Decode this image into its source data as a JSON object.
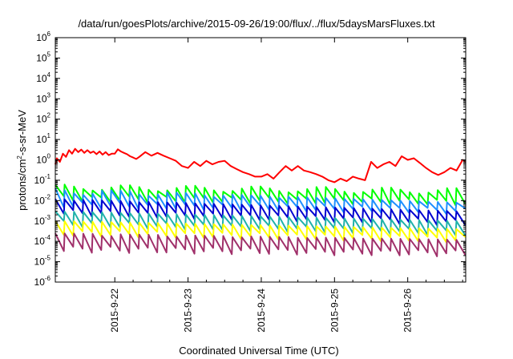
{
  "chart_data": {
    "type": "line",
    "title": "/data/run/goesPlots/archive/2015-09-26/19:00/flux/../flux/5daysMarsFluxes.txt",
    "xlabel": "Coordinated Universal Time (UTC)",
    "ylabel": {
      "prefix": "protons/cm",
      "sup": "2",
      "suffix": "-s-sr-MeV"
    },
    "yscale": "log",
    "ylim_exponents": [
      -6,
      6
    ],
    "y_ticks": [
      {
        "base": "10",
        "exp": "6"
      },
      {
        "base": "10",
        "exp": "5"
      },
      {
        "base": "10",
        "exp": "4"
      },
      {
        "base": "10",
        "exp": "3"
      },
      {
        "base": "10",
        "exp": "2"
      },
      {
        "base": "10",
        "exp": "1"
      },
      {
        "base": "10",
        "exp": "0"
      },
      {
        "base": "10",
        "exp": "-1"
      },
      {
        "base": "10",
        "exp": "-2"
      },
      {
        "base": "10",
        "exp": "-3"
      },
      {
        "base": "10",
        "exp": "-4"
      },
      {
        "base": "10",
        "exp": "-5"
      },
      {
        "base": "10",
        "exp": "-6"
      }
    ],
    "xlim": [
      "2015-09-21 04:30",
      "2015-09-26 19:00"
    ],
    "x_ticks": [
      "2015-9-22",
      "2015-9-23",
      "2015-9-24",
      "2015-9-25",
      "2015-9-26"
    ],
    "grid": false,
    "legend": "none",
    "series": [
      {
        "color": "#ff0000",
        "style": "smooth",
        "x": [
          "2015-09-21 04:30",
          "2015-09-21 05:00",
          "2015-09-21 06:00",
          "2015-09-21 07:00",
          "2015-09-21 08:00",
          "2015-09-21 09:00",
          "2015-09-21 10:00",
          "2015-09-21 11:00",
          "2015-09-21 12:00",
          "2015-09-21 13:00",
          "2015-09-21 14:00",
          "2015-09-21 15:00",
          "2015-09-21 16:00",
          "2015-09-21 17:00",
          "2015-09-21 18:00",
          "2015-09-21 19:00",
          "2015-09-21 20:00",
          "2015-09-21 21:00",
          "2015-09-21 22:00",
          "2015-09-21 23:00",
          "2015-09-22 00:00",
          "2015-09-22 01:00",
          "2015-09-22 02:00",
          "2015-09-22 03:00",
          "2015-09-22 04:00",
          "2015-09-22 05:00",
          "2015-09-22 06:00",
          "2015-09-22 07:00",
          "2015-09-22 08:00",
          "2015-09-22 10:00",
          "2015-09-22 12:00",
          "2015-09-22 14:00",
          "2015-09-22 16:00",
          "2015-09-22 18:00",
          "2015-09-22 20:00",
          "2015-09-22 22:00",
          "2015-09-23 00:00",
          "2015-09-23 02:00",
          "2015-09-23 04:00",
          "2015-09-23 06:00",
          "2015-09-23 08:00",
          "2015-09-23 10:00",
          "2015-09-23 12:00",
          "2015-09-23 14:00",
          "2015-09-23 16:00",
          "2015-09-23 18:00",
          "2015-09-23 20:00",
          "2015-09-23 22:00",
          "2015-09-24 00:00",
          "2015-09-24 02:00",
          "2015-09-24 04:00",
          "2015-09-24 06:00",
          "2015-09-24 08:00",
          "2015-09-24 10:00",
          "2015-09-24 12:00",
          "2015-09-24 14:00",
          "2015-09-24 16:00",
          "2015-09-24 18:00",
          "2015-09-24 20:00",
          "2015-09-24 22:00",
          "2015-09-25 00:00",
          "2015-09-25 02:00",
          "2015-09-25 04:00",
          "2015-09-25 06:00",
          "2015-09-25 08:00",
          "2015-09-25 10:00",
          "2015-09-25 12:00",
          "2015-09-25 14:00",
          "2015-09-25 16:00",
          "2015-09-25 18:00",
          "2015-09-25 20:00",
          "2015-09-25 22:00",
          "2015-09-26 00:00",
          "2015-09-26 02:00",
          "2015-09-26 04:00",
          "2015-09-26 06:00",
          "2015-09-26 08:00",
          "2015-09-26 10:00",
          "2015-09-26 12:00",
          "2015-09-26 14:00",
          "2015-09-26 16:00",
          "2015-09-26 18:00",
          "2015-09-26 19:00"
        ],
        "y": [
          0.6,
          1.2,
          0.8,
          2.0,
          1.4,
          3.0,
          2.0,
          3.5,
          2.4,
          3.2,
          2.2,
          3.0,
          2.2,
          2.6,
          1.9,
          2.6,
          1.8,
          2.4,
          1.7,
          2.0,
          2.0,
          3.3,
          2.6,
          2.2,
          1.9,
          1.5,
          1.3,
          1.1,
          1.4,
          2.4,
          1.6,
          2.2,
          1.6,
          1.2,
          0.9,
          0.5,
          0.4,
          0.8,
          0.5,
          0.9,
          0.6,
          0.8,
          0.9,
          0.5,
          0.35,
          0.25,
          0.2,
          0.15,
          0.15,
          0.2,
          0.12,
          0.25,
          0.5,
          0.3,
          0.5,
          0.3,
          0.25,
          0.2,
          0.15,
          0.1,
          0.08,
          0.12,
          0.09,
          0.15,
          0.12,
          0.1,
          0.8,
          0.4,
          0.6,
          0.8,
          0.5,
          1.5,
          1.0,
          1.2,
          0.7,
          0.4,
          0.25,
          0.18,
          0.25,
          0.4,
          0.3,
          1.0,
          0.8
        ]
      },
      {
        "color": "#00ff00",
        "style": "sawtooth",
        "start": [
          0.15,
          0.012
        ],
        "end": [
          0.09,
          0.008
        ],
        "cycles": 44,
        "amplitude_decades": 0.45
      },
      {
        "color": "#1e90ff",
        "style": "sawtooth",
        "start": [
          0.04,
          0.006
        ],
        "end": [
          0.008,
          0.003
        ],
        "cycles": 44,
        "amplitude_decades": 0.55
      },
      {
        "color": "#0000d0",
        "style": "sawtooth",
        "start": [
          0.012,
          0.0025
        ],
        "end": [
          0.003,
          0.0008
        ],
        "cycles": 44,
        "amplitude_decades": 0.65
      },
      {
        "color": "#20b2aa",
        "style": "sawtooth",
        "start": [
          0.003,
          0.0007
        ],
        "end": [
          0.001,
          0.00025
        ],
        "cycles": 44,
        "amplitude_decades": 0.65
      },
      {
        "color": "#ffff00",
        "style": "sawtooth",
        "start": [
          0.001,
          0.00025
        ],
        "end": [
          0.0004,
          0.00012
        ],
        "cycles": 44,
        "amplitude_decades": 0.65
      },
      {
        "color": "#a0306a",
        "style": "sawtooth",
        "start": [
          0.00025,
          4e-05
        ],
        "end": [
          0.00012,
          2.5e-05
        ],
        "cycles": 44,
        "amplitude_decades": 0.7
      }
    ]
  }
}
